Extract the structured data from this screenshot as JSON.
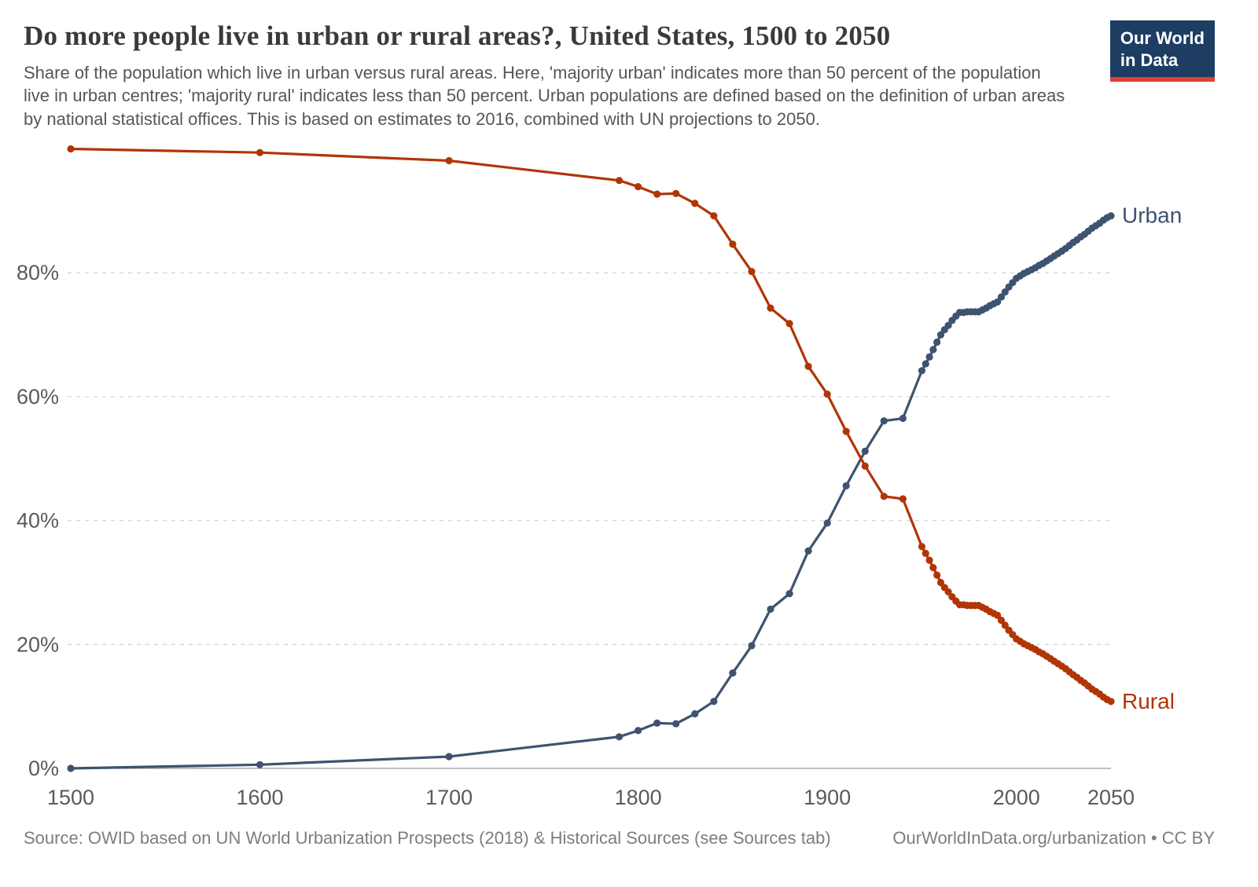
{
  "header": {
    "title": "Do more people live in urban or rural areas?, United States, 1500 to 2050",
    "subtitle": "Share of the population which live in urban versus rural areas. Here, 'majority urban' indicates more than 50 percent of the population live in urban centres; 'majority rural' indicates less than 50 percent. Urban populations are defined based on the definition of urban areas by national statistical offices. This is based on estimates to 2016, combined with UN projections to 2050.",
    "logo": {
      "line1": "Our World",
      "line2": "in Data",
      "bg": "#1d3d63",
      "accent": "#dc3f34"
    }
  },
  "footer": {
    "source": "Source: OWID based on UN World Urbanization Prospects (2018) & Historical Sources (see Sources tab)",
    "link": "OurWorldInData.org/urbanization • CC BY"
  },
  "chart_data": {
    "type": "line",
    "title": "Do more people live in urban or rural areas?, United States, 1500 to 2050",
    "xlabel": "",
    "ylabel": "",
    "xlim": [
      1500,
      2050
    ],
    "ylim": [
      0,
      100
    ],
    "x_ticks": [
      1500,
      1600,
      1700,
      1800,
      1900,
      2000,
      2050
    ],
    "y_ticks": [
      0,
      20,
      40,
      60,
      80
    ],
    "y_tick_suffix": "%",
    "grid": "dashed-horizontal",
    "legend": "end-of-line-labels",
    "x": [
      1500,
      1600,
      1700,
      1790,
      1800,
      1810,
      1820,
      1830,
      1840,
      1850,
      1860,
      1870,
      1880,
      1890,
      1900,
      1910,
      1920,
      1930,
      1940,
      1950,
      1952,
      1954,
      1956,
      1958,
      1960,
      1962,
      1964,
      1966,
      1968,
      1970,
      1972,
      1974,
      1976,
      1978,
      1980,
      1982,
      1984,
      1986,
      1988,
      1990,
      1992,
      1994,
      1996,
      1998,
      2000,
      2002,
      2004,
      2006,
      2008,
      2010,
      2012,
      2014,
      2016,
      2018,
      2020,
      2022,
      2024,
      2026,
      2028,
      2030,
      2032,
      2034,
      2036,
      2038,
      2040,
      2042,
      2044,
      2046,
      2048,
      2050
    ],
    "series": [
      {
        "name": "Urban",
        "color": "#3e536f",
        "values": [
          0,
          0.6,
          1.9,
          5.1,
          6.1,
          7.3,
          7.2,
          8.8,
          10.8,
          15.4,
          19.8,
          25.7,
          28.2,
          35.1,
          39.6,
          45.6,
          51.2,
          56.1,
          56.5,
          64.2,
          65.3,
          66.4,
          67.6,
          68.8,
          70,
          70.8,
          71.5,
          72.3,
          73,
          73.6,
          73.6,
          73.7,
          73.7,
          73.7,
          73.7,
          74,
          74.3,
          74.7,
          75,
          75.3,
          76.1,
          76.9,
          77.7,
          78.4,
          79.1,
          79.5,
          79.9,
          80.2,
          80.5,
          80.8,
          81.2,
          81.5,
          81.9,
          82.3,
          82.7,
          83.1,
          83.5,
          83.9,
          84.4,
          84.9,
          85.3,
          85.8,
          86.2,
          86.7,
          87.2,
          87.6,
          88,
          88.5,
          88.9,
          89.2
        ]
      },
      {
        "name": "Rural",
        "color": "#b13507",
        "values": [
          100,
          99.4,
          98.1,
          94.9,
          93.9,
          92.7,
          92.8,
          91.2,
          89.2,
          84.6,
          80.2,
          74.3,
          71.8,
          64.9,
          60.4,
          54.4,
          48.8,
          43.9,
          43.5,
          35.8,
          34.7,
          33.6,
          32.4,
          31.2,
          30,
          29.2,
          28.5,
          27.7,
          27,
          26.4,
          26.4,
          26.3,
          26.3,
          26.3,
          26.3,
          26,
          25.7,
          25.3,
          25,
          24.7,
          23.9,
          23.1,
          22.3,
          21.6,
          20.9,
          20.5,
          20.1,
          19.8,
          19.5,
          19.2,
          18.8,
          18.5,
          18.1,
          17.7,
          17.3,
          16.9,
          16.5,
          16.1,
          15.6,
          15.1,
          14.7,
          14.2,
          13.8,
          13.3,
          12.8,
          12.4,
          12,
          11.5,
          11.1,
          10.8
        ]
      }
    ]
  }
}
